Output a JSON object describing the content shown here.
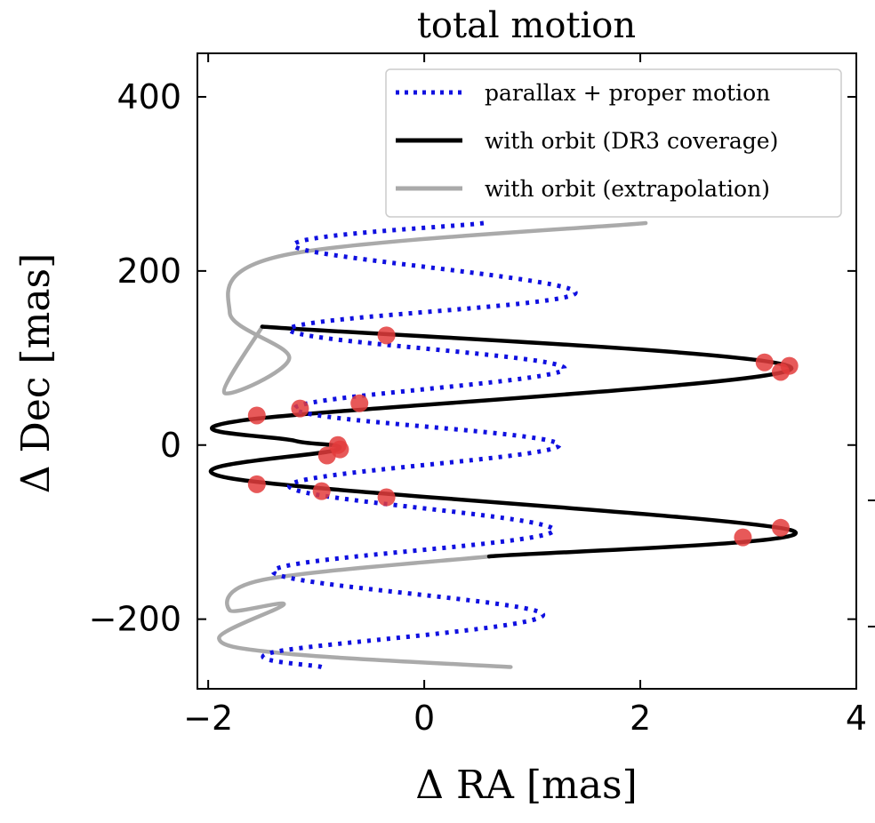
{
  "chart_data": {
    "type": "line",
    "title": "total motion",
    "xlabel": "Δ RA [mas]",
    "ylabel": "Δ Dec [mas]",
    "xlim": [
      -2.1,
      4.0
    ],
    "ylim": [
      -280,
      450
    ],
    "xticks": [
      -2,
      0,
      2,
      4
    ],
    "yticks": [
      -200,
      0,
      200,
      400
    ],
    "xtick_labels": [
      "−2",
      "0",
      "2",
      "4"
    ],
    "ytick_labels": [
      "−200",
      "0",
      "200",
      "400"
    ],
    "grid": false,
    "legend_position": "top-right",
    "legend": [
      {
        "label": "parallax + proper motion",
        "style": "dotted",
        "color": "#1010e0"
      },
      {
        "label": "with orbit (DR3 coverage)",
        "style": "solid",
        "color": "#000000"
      },
      {
        "label": "with orbit (extrapolation)",
        "style": "solid",
        "color": "#aaaaaa"
      }
    ],
    "series": [
      {
        "name": "parallax + proper motion",
        "color": "#1010e0",
        "x": [
          0.55,
          -1.2,
          1.4,
          -1.25,
          1.3,
          -1.2,
          1.25,
          -1.25,
          1.2,
          -1.4,
          1.1,
          -1.4,
          -0.95
        ],
        "y": [
          255,
          228,
          175,
          133,
          88,
          42,
          0,
          -47,
          -98,
          -145,
          -195,
          -238,
          -255
        ]
      },
      {
        "name": "with orbit (DR3 coverage)",
        "color": "#000000",
        "x": [
          -1.5,
          3.4,
          -1.7,
          -1.2,
          -0.8,
          -1.8,
          3.4,
          0.6
        ],
        "y": [
          136,
          88,
          28,
          5,
          -5,
          -38,
          -98,
          -128
        ]
      },
      {
        "name": "with orbit (extrapolation)",
        "color": "#aaaaaa",
        "x": [
          2.05,
          -1.3,
          -1.8,
          -1.25,
          -1.85,
          -1.5
        ],
        "y": [
          255,
          218,
          152,
          100,
          60,
          136
        ]
      },
      {
        "name": "with orbit (extrapolation)",
        "color": "#aaaaaa",
        "x": [
          0.6,
          -1.5,
          -1.8,
          -1.3,
          -1.9,
          -1.25,
          0.8
        ],
        "y": [
          -128,
          -155,
          -190,
          -183,
          -222,
          -240,
          -255
        ]
      }
    ],
    "points": {
      "color": "#e33c3c",
      "x": [
        -0.35,
        3.15,
        3.3,
        3.38,
        -0.6,
        -1.15,
        -1.55,
        -0.8,
        -0.9,
        -0.78,
        -1.55,
        -0.95,
        -0.35,
        3.3,
        2.95
      ],
      "y": [
        126,
        95,
        84,
        91,
        48,
        42,
        34,
        0,
        -12,
        -5,
        -45,
        -53,
        -60,
        -95,
        -106
      ]
    }
  }
}
